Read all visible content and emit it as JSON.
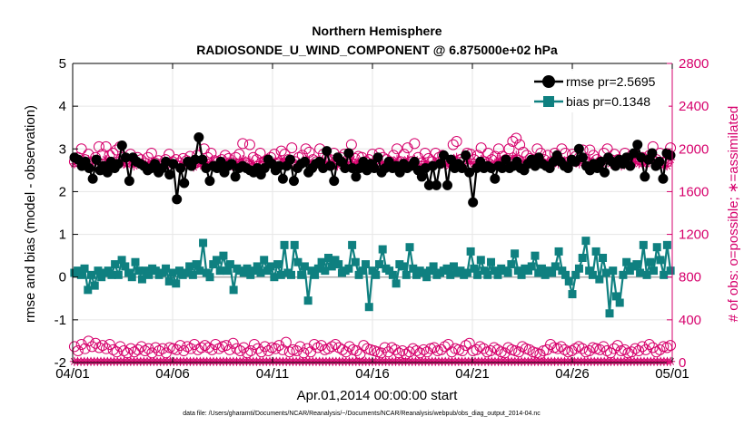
{
  "chart_data": {
    "type": "line",
    "title_line1": "Northern Hemisphere",
    "title_line2": "RADIOSONDE_U_WIND_COMPONENT @ 6.875000e+02 hPa",
    "xlabel": "Apr.01,2014 00:00:00 start",
    "ylabel_left": "rmse and bias (model - observation)",
    "ylabel_right": "# of obs: o=possible; ∗=assimilated",
    "footer": "data file: /Users/gharamti/Documents/NCAR/Reanalysis/~/Documents/NCAR/Reanalysis/webpub/obs_diag_output_2014-04.nc",
    "x_ticks": [
      "04/01",
      "04/06",
      "04/11",
      "04/16",
      "04/21",
      "04/26",
      "05/01"
    ],
    "x_tick_days": [
      0,
      5,
      10,
      15,
      20,
      25,
      30
    ],
    "xlim": [
      0,
      30
    ],
    "ylim_left": [
      -2,
      5
    ],
    "y_ticks_left": [
      "-2",
      "-1",
      "0",
      "1",
      "2",
      "3",
      "4",
      "5"
    ],
    "ylim_right": [
      0,
      2800
    ],
    "y_ticks_right": [
      "0",
      "400",
      "800",
      "1200",
      "1600",
      "2000",
      "2400",
      "2800"
    ],
    "colors": {
      "rmse": "#000000",
      "bias": "#0f8080",
      "obs": "#d6006c",
      "grid": "#e6e6e6"
    },
    "legend": [
      {
        "name": "rmse pr=2.5695"
      },
      {
        "name": "bias pr=0.1348"
      }
    ],
    "series": [
      {
        "name": "rmse",
        "axis": "left",
        "values": [
          2.8,
          2.75,
          2.6,
          2.7,
          2.55,
          2.3,
          2.75,
          2.5,
          2.6,
          2.45,
          2.7,
          2.55,
          2.65,
          3.08,
          2.8,
          2.25,
          2.8,
          2.7,
          2.65,
          2.6,
          2.5,
          2.55,
          2.65,
          2.45,
          2.55,
          2.7,
          2.4,
          2.65,
          1.82,
          2.55,
          2.2,
          2.7,
          2.6,
          2.75,
          3.27,
          2.75,
          2.55,
          2.25,
          2.6,
          2.55,
          2.7,
          2.45,
          2.6,
          2.65,
          2.35,
          2.55,
          2.6,
          2.55,
          2.5,
          2.45,
          2.55,
          2.4,
          2.55,
          2.75,
          2.65,
          2.5,
          2.6,
          2.3,
          2.6,
          2.75,
          2.25,
          2.55,
          2.65,
          2.7,
          2.45,
          2.55,
          2.65,
          2.7,
          2.55,
          2.95,
          2.6,
          2.25,
          2.8,
          2.7,
          2.55,
          2.9,
          2.55,
          2.35,
          2.55,
          2.7,
          2.5,
          2.65,
          2.55,
          2.8,
          2.45,
          2.55,
          2.7,
          2.55,
          2.6,
          2.45,
          2.65,
          2.55,
          2.6,
          2.7,
          2.5,
          2.35,
          2.55,
          2.15,
          2.6,
          2.15,
          2.65,
          2.85,
          2.15,
          2.75,
          2.55,
          2.65,
          2.55,
          2.85,
          2.45,
          1.75,
          2.55,
          2.7,
          2.55,
          2.6,
          2.55,
          2.3,
          2.6,
          2.55,
          2.75,
          2.55,
          2.6,
          2.7,
          2.55,
          2.5,
          2.65,
          2.75,
          2.6,
          2.8,
          2.65,
          2.6,
          2.55,
          2.7,
          2.85,
          2.7,
          2.6,
          2.55,
          2.75,
          2.7,
          3.0,
          2.8,
          2.6,
          2.5,
          2.65,
          2.55,
          2.7,
          2.45,
          2.8,
          2.7,
          2.6,
          2.75,
          2.65,
          2.8,
          2.6,
          2.9,
          3.1,
          2.8,
          2.35,
          2.75,
          2.9,
          2.6,
          2.7,
          2.3,
          2.9,
          2.85
        ]
      },
      {
        "name": "bias",
        "axis": "left",
        "values": [
          0.1,
          0.15,
          0.05,
          0.2,
          -0.3,
          0.05,
          -0.2,
          0.15,
          0.0,
          0.1,
          0.15,
          0.05,
          0.3,
          0.05,
          0.4,
          0.25,
          0.1,
          0.0,
          0.35,
          0.15,
          -0.05,
          0.15,
          0.05,
          0.2,
          0.15,
          0.05,
          0.1,
          0.2,
          -0.1,
          0.1,
          -0.15,
          0.15,
          0.05,
          0.1,
          0.25,
          0.05,
          0.3,
          0.15,
          0.8,
          0.1,
          0.0,
          0.3,
          0.4,
          0.15,
          0.5,
          0.15,
          0.3,
          -0.3,
          0.2,
          0.15,
          0.1,
          0.2,
          0.05,
          0.15,
          0.25,
          0.1,
          0.4,
          0.15,
          0.25,
          0.0,
          0.3,
          0.05,
          0.75,
          0.1,
          0.05,
          0.75,
          0.35,
          0.05,
          0.25,
          -0.55,
          0.15,
          0.05,
          0.2,
          0.35,
          0.15,
          0.45,
          0.25,
          0.4,
          0.3,
          0.1,
          0.15,
          0.2,
          0.75,
          0.35,
          0.05,
          0.15,
          0.3,
          -0.7,
          0.15,
          0.05,
          0.3,
          0.65,
          0.2,
          0.15,
          0.05,
          -0.15,
          0.3,
          0.25,
          0.05,
          0.7,
          0.2,
          0.05,
          0.15,
          0.1,
          0.0,
          0.15,
          0.25,
          0.05,
          0.1,
          0.15,
          0.2,
          0.05,
          0.25,
          0.1,
          0.15,
          0.05,
          0.1,
          0.6,
          0.2,
          0.05,
          0.4,
          0.15,
          0.05,
          0.35,
          0.15,
          0.05,
          0.2,
          0.15,
          0.1,
          0.3,
          0.55,
          0.15,
          0.05,
          0.2,
          0.15,
          0.25,
          0.5,
          0.1,
          0.2,
          0.05,
          0.15,
          0.1,
          0.25,
          0.6,
          0.15,
          0.05,
          -0.1,
          -0.4,
          0.05,
          0.2,
          0.45,
          0.85,
          0.15,
          0.05,
          0.6,
          -0.05,
          0.45,
          0.1,
          -0.85,
          0.15,
          -0.45,
          -0.6,
          0.05,
          0.35,
          0.15,
          0.25,
          0.3,
          0.1,
          0.75,
          0.05,
          0.35,
          0.15,
          0.7,
          0.4,
          0.05,
          0.75,
          0.15
        ]
      },
      {
        "name": "possible",
        "axis": "right",
        "marker": "circle",
        "values": [
          1880,
          1920,
          2000,
          1900,
          1950,
          1870,
          1920,
          2020,
          1950,
          2020,
          1940,
          1960,
          1990,
          2020,
          1920,
          1880,
          1950,
          1880,
          1920,
          1900,
          1870,
          1920,
          1960,
          1870,
          1890,
          1860,
          1900,
          1950,
          1880,
          1900,
          1870,
          1910,
          1890,
          1930,
          1860,
          1940,
          1880,
          2000,
          1920,
          1960,
          1890,
          1880,
          1900,
          1940,
          1910,
          1870,
          1920,
          1950,
          2050,
          1870,
          2040,
          1920,
          1900,
          1960,
          1880,
          1900,
          1920,
          1950,
          1870,
          1980,
          1950,
          1900,
          2010,
          1880,
          1920,
          1940,
          2000,
          1970,
          1900,
          1880,
          2000,
          1950,
          1910,
          1900,
          1960,
          1880,
          1920,
          1950,
          1900,
          2040,
          1910,
          1930,
          1920,
          1880,
          1900,
          1950,
          1870,
          1960,
          1920,
          1900,
          1880,
          1940,
          2000,
          1880,
          1950,
          2010,
          1880,
          2050,
          1920,
          1870,
          1960,
          1910,
          1880,
          1960,
          1920,
          1940,
          1900,
          1880,
          2040,
          2070,
          1900,
          1880,
          1960,
          1950,
          1900,
          1940,
          2010,
          1880,
          1960,
          1900,
          1930,
          2000,
          1930,
          1900,
          2000,
          2070,
          2100,
          2040,
          1970,
          1940,
          1910,
          1900,
          2000,
          1960,
          1900,
          1940,
          1880,
          1960,
          1900,
          2000,
          1960,
          1880,
          1950,
          1930,
          1920,
          1990,
          1880,
          1990,
          1940,
          1900,
          1880,
          1960,
          2000,
          1900,
          1950,
          1900,
          1880,
          1960,
          1900,
          1940,
          1950,
          1900,
          1920,
          1900,
          1940,
          2020,
          1900,
          1960,
          1870,
          1880,
          2010
        ]
      },
      {
        "name": "assimilated",
        "axis": "right",
        "marker": "star",
        "values": [
          1860,
          1900,
          1880,
          1860,
          1900,
          1850,
          1890,
          1880,
          1860,
          1900,
          1870,
          1880,
          1880,
          1900,
          1860,
          1850,
          1880,
          1840,
          1870,
          1860,
          1840,
          1860,
          1880,
          1850,
          1840,
          1830,
          1850,
          1870,
          1850,
          1860,
          1840,
          1860,
          1850,
          1880,
          1830,
          1880,
          1850,
          1900,
          1860,
          1880,
          1850,
          1830,
          1860,
          1890,
          1860,
          1840,
          1860,
          1880,
          1900,
          1840,
          1890,
          1860,
          1850,
          1880,
          1850,
          1860,
          1860,
          1880,
          1840,
          1900,
          1880,
          1860,
          1900,
          1840,
          1870,
          1880,
          1900,
          1880,
          1860,
          1840,
          1900,
          1880,
          1860,
          1860,
          1880,
          1840,
          1860,
          1880,
          1860,
          1900,
          1860,
          1880,
          1860,
          1840,
          1860,
          1880,
          1840,
          1880,
          1860,
          1850,
          1840,
          1880,
          1900,
          1840,
          1880,
          1900,
          1840,
          1900,
          1860,
          1840,
          1880,
          1860,
          1840,
          1880,
          1860,
          1880,
          1850,
          1840,
          1900,
          1920,
          1860,
          1840,
          1880,
          1880,
          1860,
          1880,
          1900,
          1840,
          1880,
          1860,
          1870,
          1900,
          1880,
          1860,
          1900,
          1920,
          1940,
          1900,
          1880,
          1880,
          1860,
          1860,
          1900,
          1880,
          1860,
          1880,
          1840,
          1880,
          1860,
          1900,
          1880,
          1840,
          1880,
          1870,
          1860,
          1900,
          1840,
          1900,
          1880,
          1860,
          1840,
          1880,
          1900,
          1860,
          1880,
          1860,
          1840,
          1880,
          1860,
          1880,
          1880,
          1860,
          1860,
          1860,
          1880,
          1920,
          1860,
          1880,
          1840,
          1840,
          1900
        ]
      },
      {
        "name": "possible_low",
        "axis": "right",
        "marker": "circle",
        "values": [
          150,
          110,
          170,
          130,
          200,
          150,
          180,
          140,
          160,
          130,
          170,
          120,
          100,
          150,
          110,
          90,
          130,
          100,
          120,
          150,
          110,
          130,
          90,
          140,
          110,
          130,
          90,
          140,
          130,
          120,
          160,
          110,
          150,
          130,
          170,
          120,
          140,
          160,
          140,
          120,
          170,
          130,
          150,
          160,
          120,
          180,
          130,
          110,
          140,
          90,
          110,
          170,
          130,
          100,
          150,
          110,
          140,
          130,
          160,
          120,
          190,
          100,
          120,
          110,
          150,
          90,
          130,
          100,
          170,
          140,
          160,
          120,
          130,
          150,
          170,
          140,
          120,
          100,
          150,
          120,
          110,
          80,
          160,
          130,
          120,
          110,
          100,
          90,
          140,
          100,
          140,
          120,
          90,
          110,
          80,
          100,
          130,
          110,
          90,
          120,
          100,
          130,
          140,
          110,
          120,
          150,
          170,
          100,
          130,
          120,
          110,
          160,
          180,
          110,
          120,
          150,
          130,
          100,
          110,
          140,
          120,
          100,
          90,
          140,
          120,
          110,
          100,
          150,
          130,
          120,
          100,
          90,
          80,
          110,
          120,
          170,
          140,
          130,
          150,
          120,
          100,
          110,
          130,
          150,
          130,
          100,
          110,
          140,
          130,
          120,
          150,
          110,
          90,
          130,
          160,
          110,
          120,
          90,
          100,
          130,
          110,
          150,
          120,
          170,
          140,
          100,
          120,
          150,
          140,
          160
        ]
      },
      {
        "name": "assimilated_low",
        "axis": "right",
        "marker": "star",
        "values": [
          10,
          10,
          10,
          10,
          10,
          10,
          10,
          10,
          10,
          10,
          10,
          10,
          10,
          10,
          10,
          10,
          10,
          10,
          10,
          10,
          10,
          10,
          10,
          10,
          10,
          10,
          10,
          10,
          10,
          10,
          10,
          10,
          10,
          10,
          10,
          10,
          10,
          10,
          10,
          10,
          10,
          10,
          10,
          10,
          10,
          10,
          10,
          10,
          10,
          10,
          10,
          10,
          10,
          10,
          10,
          10,
          10,
          10,
          10,
          10,
          10,
          10,
          10,
          10,
          10,
          10,
          10,
          10,
          10,
          10,
          10,
          10,
          10,
          10,
          10,
          10,
          10,
          10,
          10,
          10,
          10,
          10,
          10,
          10,
          10,
          10,
          10,
          10,
          10,
          10,
          10,
          10,
          10,
          10,
          10,
          10,
          10,
          10,
          10,
          10,
          10,
          10,
          10,
          10,
          10,
          10,
          10,
          10,
          10,
          10,
          10,
          10,
          10,
          10,
          10,
          10,
          10,
          10,
          10,
          10,
          10,
          10,
          10,
          10,
          10,
          10,
          10,
          10,
          10,
          10,
          10,
          10,
          10,
          10,
          10,
          10,
          10,
          10,
          10,
          10,
          10,
          10,
          10,
          10,
          10,
          10,
          10,
          10,
          10,
          10,
          10,
          10,
          10,
          10,
          10,
          10,
          10,
          10,
          10,
          10,
          10,
          10,
          10,
          10,
          10,
          10,
          10,
          10,
          10,
          10,
          10,
          10,
          10,
          10,
          10,
          10,
          10,
          10,
          10,
          10,
          10
        ]
      }
    ]
  }
}
